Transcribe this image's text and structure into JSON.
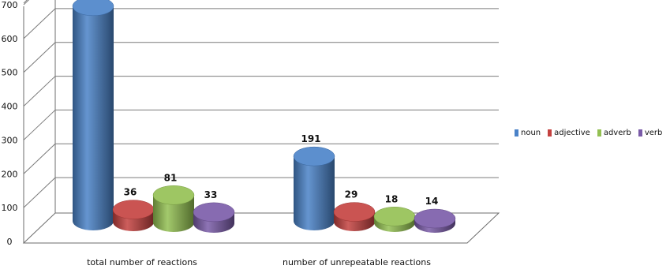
{
  "chart_data": {
    "type": "bar",
    "categories": [
      "total number of reactions",
      "number of unrepeatable reactions"
    ],
    "series": [
      {
        "name": "noun",
        "values": [
          635,
          191
        ],
        "color": "#4a82c8"
      },
      {
        "name": "adjective",
        "values": [
          36,
          29
        ],
        "color": "#c4413f"
      },
      {
        "name": "adverb",
        "values": [
          81,
          18
        ],
        "color": "#93c052"
      },
      {
        "name": "verb",
        "values": [
          33,
          14
        ],
        "color": "#7a5ba8"
      }
    ],
    "yticks": [
      0,
      100,
      200,
      300,
      400,
      500,
      600,
      700
    ],
    "ylim": [
      0,
      700
    ],
    "grid": true,
    "legend_position": "right",
    "style": "3d-cylinder"
  }
}
